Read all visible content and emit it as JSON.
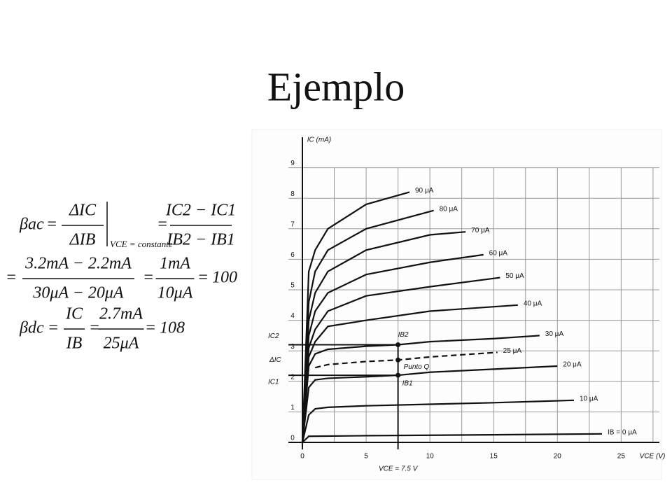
{
  "title": "Ejemplo",
  "equations": {
    "equals": "=",
    "beta_ac": "βac",
    "delta_ic": "ΔIC",
    "delta_ib": "ΔIB",
    "condition": "VCE = constante",
    "ic_diff": "IC2 − IC1",
    "ib_diff": "IB2 − IB1",
    "num2": "3.2mA − 2.2mA",
    "den2": "30μA − 20μA",
    "num3": "1mA",
    "den3": "10μA",
    "result_ac": "100",
    "beta_dc": "βdc",
    "ic": "IC",
    "ib": "IB",
    "num4": "2.7mA",
    "den4": "25μA",
    "result_dc": "108"
  },
  "chart_data": {
    "type": "line",
    "x_label": "VCE (V)",
    "y_label": "IC (mA)",
    "xlim": [
      0,
      28
    ],
    "ylim": [
      0,
      10
    ],
    "xticks": [
      0,
      5,
      10,
      15,
      20,
      25
    ],
    "xminor": [
      2.5,
      7.5,
      12.5,
      17.5,
      22.5,
      27.5
    ],
    "yticks": [
      0,
      1,
      2,
      3,
      4,
      5,
      6,
      7,
      8,
      9
    ],
    "grid": true,
    "color": "#111111",
    "series": [
      {
        "name": "IB = 0 μA",
        "x": [
          0,
          0.5,
          5,
          15,
          23.5
        ],
        "values": [
          0,
          0.2,
          0.22,
          0.25,
          0.28
        ]
      },
      {
        "name": "10 μA",
        "x": [
          0,
          0.5,
          1,
          2,
          5,
          10,
          15,
          21.3
        ],
        "values": [
          0,
          0.9,
          1.1,
          1.15,
          1.2,
          1.25,
          1.3,
          1.38
        ]
      },
      {
        "name": "20 μA",
        "x": [
          0,
          0.5,
          1,
          2,
          5,
          7.5,
          10,
          15,
          20
        ],
        "values": [
          0,
          1.8,
          2.05,
          2.1,
          2.15,
          2.2,
          2.3,
          2.4,
          2.5
        ]
      },
      {
        "name": "25 μA",
        "dashed": true,
        "x": [
          1,
          2,
          5,
          7.5,
          10,
          15.3
        ],
        "values": [
          2.45,
          2.55,
          2.65,
          2.7,
          2.8,
          2.95
        ]
      },
      {
        "name": "30 μA",
        "x": [
          0,
          0.5,
          1,
          2,
          5,
          7.5,
          10,
          15,
          18.6
        ],
        "values": [
          0,
          2.5,
          2.9,
          3.05,
          3.15,
          3.2,
          3.3,
          3.4,
          3.5
        ]
      },
      {
        "name": "40 μA",
        "x": [
          0,
          0.5,
          1,
          2,
          5,
          10,
          16.9
        ],
        "values": [
          0,
          2.8,
          3.3,
          3.8,
          4.0,
          4.3,
          4.5
        ]
      },
      {
        "name": "50 μA",
        "x": [
          0,
          0.5,
          1,
          2,
          5,
          10,
          15.5
        ],
        "values": [
          0,
          3.1,
          3.7,
          4.3,
          4.8,
          5.1,
          5.4
        ]
      },
      {
        "name": "60 μA",
        "x": [
          0,
          0.5,
          1,
          2,
          5,
          10,
          14.2
        ],
        "values": [
          0,
          3.5,
          4.3,
          4.9,
          5.5,
          5.9,
          6.15
        ]
      },
      {
        "name": "70 μA",
        "x": [
          0,
          0.5,
          1,
          2,
          5,
          10,
          12.8
        ],
        "values": [
          0,
          4.0,
          4.9,
          5.6,
          6.3,
          6.8,
          6.9
        ]
      },
      {
        "name": "80 μA",
        "x": [
          0,
          0.5,
          1,
          2,
          5,
          10.3
        ],
        "values": [
          0,
          4.6,
          5.6,
          6.3,
          7.0,
          7.6
        ]
      },
      {
        "name": "90 μA",
        "x": [
          0,
          0.5,
          1,
          2,
          5,
          8.4
        ],
        "values": [
          0,
          5.6,
          6.3,
          7.0,
          7.8,
          8.2
        ]
      }
    ],
    "q_x": 7.5,
    "q_points": [
      2.2,
      2.7,
      3.2
    ],
    "annotations": [
      "IB2",
      "Punto Q",
      "IB1",
      "VCE = 7.5 V",
      "IC2",
      "ΔIC",
      "IC1"
    ]
  }
}
